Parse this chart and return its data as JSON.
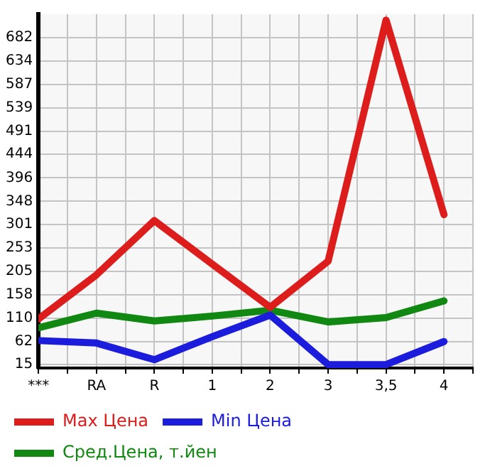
{
  "chart_data": {
    "type": "line",
    "categories": [
      "***",
      "RA",
      "R",
      "1",
      "2",
      "3",
      "3,5",
      "4"
    ],
    "series": [
      {
        "name": "Max Цена",
        "color": "#dd1c1c",
        "values": [
          108,
          198,
          309,
          220,
          132,
          226,
          718,
          321
        ]
      },
      {
        "name": "Min Цена",
        "color": "#1c1cdd",
        "values": [
          64,
          59,
          25,
          72,
          116,
          15,
          15,
          62
        ]
      },
      {
        "name": "Сред.Цена, т.йен",
        "color": "#118811",
        "values": [
          90,
          120,
          104,
          114,
          126,
          102,
          111,
          145
        ]
      }
    ],
    "ylim": [
      8,
      730
    ],
    "yticks": [
      15,
      62,
      110,
      158,
      205,
      253,
      301,
      348,
      396,
      444,
      491,
      539,
      587,
      634,
      682
    ],
    "grid": true,
    "legend": "bottom",
    "marker": "none",
    "line_style": "solid"
  }
}
